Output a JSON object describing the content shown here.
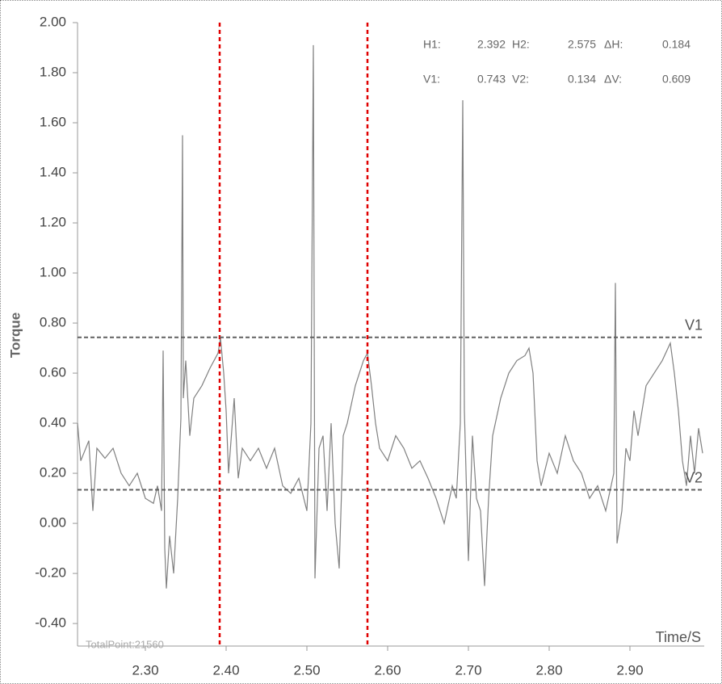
{
  "chart_data": {
    "type": "line",
    "x_label": "Time/S",
    "y_label": "Torque",
    "total_points_label": "TotalPoint:21560",
    "xlim": [
      2.216,
      2.992
    ],
    "ylim": [
      -0.49,
      2.0
    ],
    "xticks": [
      {
        "value": 2.3,
        "label": "2.30"
      },
      {
        "value": 2.4,
        "label": "2.40"
      },
      {
        "value": 2.5,
        "label": "2.50"
      },
      {
        "value": 2.6,
        "label": "2.60"
      },
      {
        "value": 2.7,
        "label": "2.70"
      },
      {
        "value": 2.8,
        "label": "2.80"
      },
      {
        "value": 2.9,
        "label": "2.90"
      }
    ],
    "yticks": [
      {
        "value": -0.4,
        "label": "-0.40"
      },
      {
        "value": -0.2,
        "label": "-0.20"
      },
      {
        "value": 0,
        "label": "0.00"
      },
      {
        "value": 0.2,
        "label": "0.20"
      },
      {
        "value": 0.4,
        "label": "0.40"
      },
      {
        "value": 0.6,
        "label": "0.60"
      },
      {
        "value": 0.8,
        "label": "0.80"
      },
      {
        "value": 1,
        "label": "1.00"
      },
      {
        "value": 1.2,
        "label": "1.20"
      },
      {
        "value": 1.4,
        "label": "1.40"
      },
      {
        "value": 1.6,
        "label": "1.60"
      },
      {
        "value": 1.8,
        "label": "1.80"
      },
      {
        "value": 2,
        "label": "2.00"
      }
    ],
    "x": [
      2.216,
      2.22,
      2.23,
      2.235,
      2.24,
      2.25,
      2.26,
      2.27,
      2.28,
      2.29,
      2.3,
      2.31,
      2.315,
      2.32,
      2.322,
      2.324,
      2.326,
      2.33,
      2.335,
      2.34,
      2.344,
      2.346,
      2.347,
      2.35,
      2.355,
      2.36,
      2.37,
      2.38,
      2.39,
      2.393,
      2.397,
      2.4,
      2.403,
      2.41,
      2.415,
      2.42,
      2.43,
      2.44,
      2.45,
      2.46,
      2.47,
      2.48,
      2.49,
      2.5,
      2.505,
      2.508,
      2.51,
      2.515,
      2.52,
      2.525,
      2.53,
      2.535,
      2.54,
      2.545,
      2.55,
      2.56,
      2.57,
      2.575,
      2.58,
      2.585,
      2.59,
      2.6,
      2.61,
      2.62,
      2.63,
      2.64,
      2.65,
      2.66,
      2.67,
      2.68,
      2.685,
      2.69,
      2.693,
      2.695,
      2.7,
      2.705,
      2.71,
      2.715,
      2.72,
      2.725,
      2.73,
      2.74,
      2.75,
      2.76,
      2.77,
      2.775,
      2.78,
      2.785,
      2.79,
      2.8,
      2.81,
      2.82,
      2.83,
      2.84,
      2.85,
      2.86,
      2.87,
      2.88,
      2.882,
      2.884,
      2.89,
      2.895,
      2.9,
      2.905,
      2.91,
      2.92,
      2.93,
      2.94,
      2.95,
      2.955,
      2.96,
      2.965,
      2.97,
      2.975,
      2.98,
      2.985,
      2.99
    ],
    "series": [
      {
        "color": "#808080",
        "values": [
          0.4,
          0.25,
          0.33,
          0.05,
          0.3,
          0.26,
          0.3,
          0.2,
          0.15,
          0.2,
          0.1,
          0.08,
          0.15,
          0.05,
          0.69,
          -0.1,
          -0.26,
          -0.05,
          -0.2,
          0.1,
          0.42,
          1.55,
          0.5,
          0.65,
          0.35,
          0.5,
          0.55,
          0.62,
          0.68,
          0.74,
          0.6,
          0.45,
          0.2,
          0.5,
          0.18,
          0.3,
          0.25,
          0.3,
          0.22,
          0.3,
          0.15,
          0.12,
          0.18,
          0.05,
          0.4,
          1.91,
          -0.22,
          0.3,
          0.35,
          0.05,
          0.4,
          0.0,
          -0.18,
          0.35,
          0.4,
          0.55,
          0.65,
          0.68,
          0.55,
          0.4,
          0.3,
          0.25,
          0.35,
          0.3,
          0.22,
          0.25,
          0.18,
          0.1,
          0.0,
          0.15,
          0.1,
          0.4,
          1.69,
          0.45,
          -0.15,
          0.35,
          0.1,
          0.05,
          -0.25,
          0.1,
          0.35,
          0.5,
          0.6,
          0.65,
          0.67,
          0.7,
          0.6,
          0.25,
          0.15,
          0.28,
          0.2,
          0.35,
          0.25,
          0.2,
          0.1,
          0.15,
          0.05,
          0.2,
          0.96,
          -0.08,
          0.05,
          0.3,
          0.25,
          0.45,
          0.35,
          0.55,
          0.6,
          0.65,
          0.72,
          0.6,
          0.45,
          0.25,
          0.15,
          0.35,
          0.2,
          0.38,
          0.28
        ]
      }
    ],
    "cursors": [
      {
        "label": "H1:",
        "value": 2.392,
        "axis": "x",
        "color": "#e00000"
      },
      {
        "label": "H2:",
        "value": 2.575,
        "axis": "x",
        "color": "#e00000"
      },
      {
        "label": "ΔH:",
        "value": 0.184
      },
      {
        "label": "V1:",
        "value": 0.743,
        "axis": "y",
        "line_label": "V1",
        "color": "#606060"
      },
      {
        "label": "V2:",
        "value": 0.134,
        "axis": "y",
        "line_label": "V2",
        "color": "#606060"
      },
      {
        "label": "ΔV:",
        "value": 0.609
      }
    ]
  }
}
